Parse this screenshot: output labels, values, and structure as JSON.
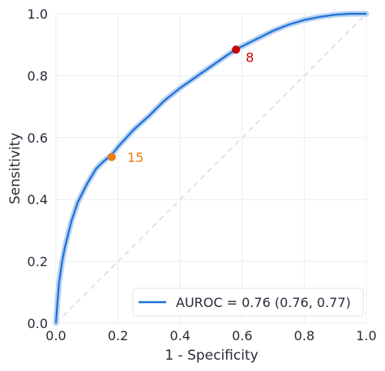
{
  "chart_data": {
    "type": "line",
    "title": "",
    "xlabel": "1 - Specificity",
    "ylabel": "Sensitivity",
    "xlim": [
      0.0,
      1.0
    ],
    "ylim": [
      0.0,
      1.0
    ],
    "x_ticks": [
      "0.0",
      "0.2",
      "0.4",
      "0.6",
      "0.8",
      "1.0"
    ],
    "y_ticks": [
      "0.0",
      "0.2",
      "0.4",
      "0.6",
      "0.8",
      "1.0"
    ],
    "grid": true,
    "legend_position": "bottom-right",
    "series": [
      {
        "name": "AUROC = 0.76 (0.76, 0.77)",
        "color": "#1f6fd6",
        "band_color": "#b8d3f2",
        "x": [
          0.0,
          0.005,
          0.01,
          0.02,
          0.03,
          0.05,
          0.07,
          0.1,
          0.13,
          0.15,
          0.18,
          0.2,
          0.25,
          0.3,
          0.35,
          0.4,
          0.45,
          0.5,
          0.55,
          0.58,
          0.6,
          0.65,
          0.7,
          0.75,
          0.8,
          0.85,
          0.9,
          0.95,
          1.0
        ],
        "y": [
          0.0,
          0.07,
          0.13,
          0.2,
          0.25,
          0.33,
          0.39,
          0.45,
          0.5,
          0.52,
          0.545,
          0.57,
          0.625,
          0.67,
          0.72,
          0.76,
          0.795,
          0.83,
          0.865,
          0.885,
          0.895,
          0.92,
          0.945,
          0.965,
          0.98,
          0.99,
          0.997,
          1.0,
          1.0
        ]
      }
    ],
    "reference_line": {
      "x": [
        0.0,
        1.0
      ],
      "y": [
        0.0,
        1.0
      ],
      "color": "#dcdcdc"
    },
    "points": [
      {
        "label": "15",
        "x": 0.18,
        "y": 0.537,
        "color": "#f07a10"
      },
      {
        "label": "8",
        "x": 0.58,
        "y": 0.884,
        "color": "#cc0000"
      }
    ]
  }
}
